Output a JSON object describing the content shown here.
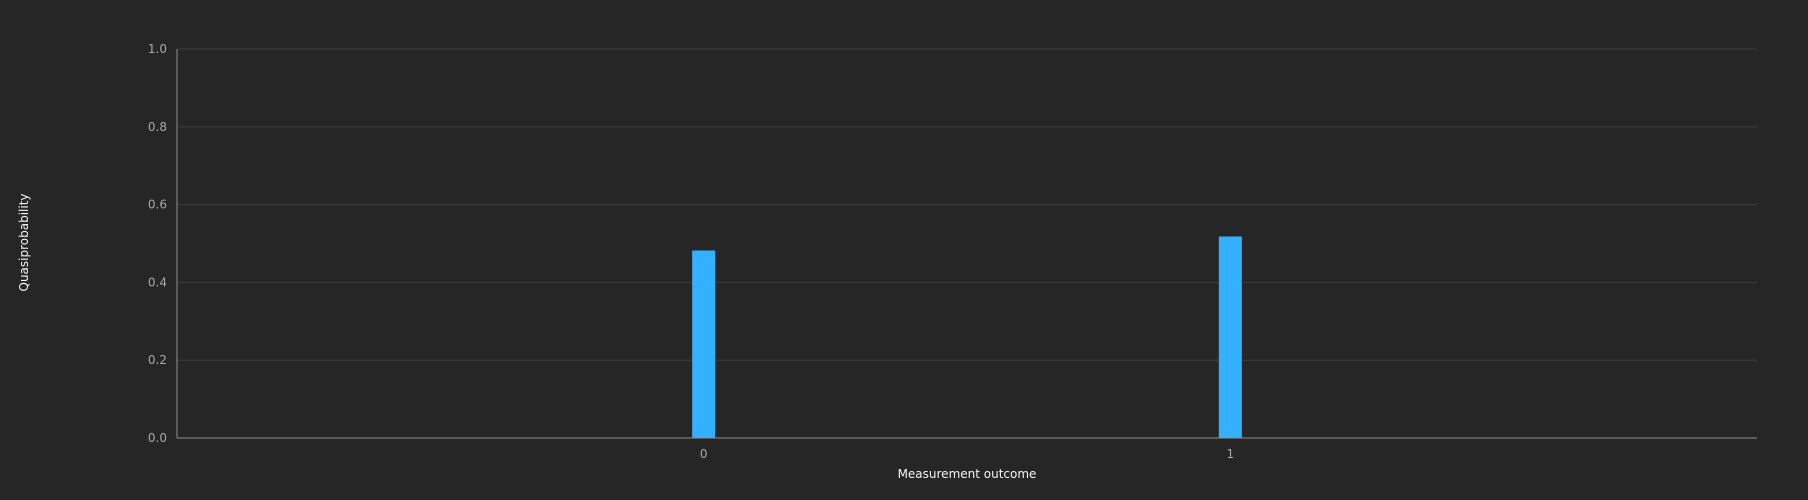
{
  "chart_data": {
    "type": "bar",
    "title": "",
    "categories": [
      "0",
      "1"
    ],
    "series": [
      {
        "values": [
          0.482,
          0.518
        ],
        "color": "#33b1ff"
      }
    ],
    "xlabel": "Measurement outcome",
    "ylabel": "Quasiprobability",
    "ylim": [
      0,
      1
    ],
    "yticks": [
      "0.0",
      "0.2",
      "0.4",
      "0.6",
      "0.8",
      "1.0"
    ],
    "grid": true,
    "legend": "none"
  }
}
